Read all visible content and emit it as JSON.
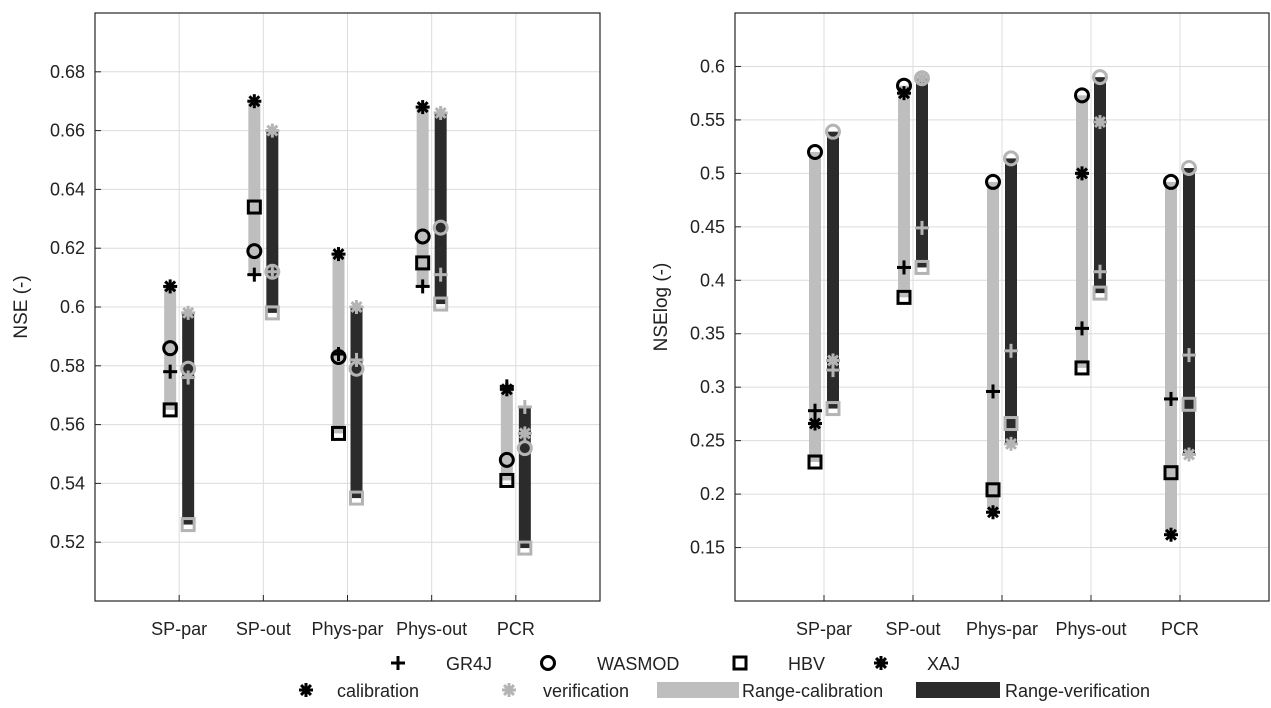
{
  "colors": {
    "range_calibration": "#bebebe",
    "range_verification": "#2b2b2b",
    "calibration_marker": "#000000",
    "verification_marker": "#b4b4b4",
    "grid": "#dcdcdc",
    "axis": "#262626"
  },
  "chart_data": [
    {
      "type": "range-marker",
      "ylabel": "NSE (-)",
      "xlabel": "",
      "categories": [
        "SP-par",
        "SP-out",
        "Phys-par",
        "Phys-out",
        "PCR"
      ],
      "ylim": [
        0.5,
        0.7
      ],
      "yticks": [
        0.52,
        0.54,
        0.56,
        0.58,
        0.6,
        0.62,
        0.64,
        0.66,
        0.68
      ],
      "ytick_labels": [
        "0.52",
        "0.54",
        "0.56",
        "0.58",
        "0.6",
        "0.62",
        "0.64",
        "0.66",
        "0.68"
      ],
      "grid": true,
      "calibration": {
        "GR4J": [
          0.578,
          0.611,
          0.584,
          0.607,
          0.573
        ],
        "WASMOD": [
          0.586,
          0.619,
          0.583,
          0.624,
          0.548
        ],
        "HBV": [
          0.565,
          0.634,
          0.557,
          0.615,
          0.541
        ],
        "XAJ": [
          0.607,
          0.67,
          0.618,
          0.668,
          0.572
        ]
      },
      "verification": {
        "GR4J": [
          0.576,
          0.612,
          0.582,
          0.611,
          0.566
        ],
        "WASMOD": [
          0.579,
          0.612,
          0.579,
          0.627,
          0.552
        ],
        "HBV": [
          0.526,
          0.598,
          0.535,
          0.601,
          0.518
        ],
        "XAJ": [
          0.598,
          0.66,
          0.6,
          0.666,
          0.557
        ]
      }
    },
    {
      "type": "range-marker",
      "ylabel": "NSElog (-)",
      "xlabel": "",
      "categories": [
        "SP-par",
        "SP-out",
        "Phys-par",
        "Phys-out",
        "PCR"
      ],
      "ylim": [
        0.1,
        0.65
      ],
      "yticks": [
        0.15,
        0.2,
        0.25,
        0.3,
        0.35,
        0.4,
        0.45,
        0.5,
        0.55,
        0.6
      ],
      "ytick_labels": [
        "0.15",
        "0.2",
        "0.25",
        "0.3",
        "0.35",
        "0.4",
        "0.45",
        "0.5",
        "0.55",
        "0.6"
      ],
      "grid": true,
      "calibration": {
        "GR4J": [
          0.278,
          0.412,
          0.296,
          0.355,
          0.289
        ],
        "WASMOD": [
          0.52,
          0.582,
          0.492,
          0.573,
          0.492
        ],
        "HBV": [
          0.23,
          0.384,
          0.204,
          0.318,
          0.22
        ],
        "XAJ": [
          0.266,
          0.575,
          0.183,
          0.5,
          0.162
        ]
      },
      "verification": {
        "GR4J": [
          0.316,
          0.449,
          0.334,
          0.408,
          0.33
        ],
        "WASMOD": [
          0.539,
          0.589,
          0.514,
          0.59,
          0.505
        ],
        "HBV": [
          0.28,
          0.412,
          0.266,
          0.388,
          0.284
        ],
        "XAJ": [
          0.325,
          0.589,
          0.247,
          0.548,
          0.237
        ]
      }
    }
  ],
  "legend": {
    "models": [
      {
        "label": "GR4J",
        "icon": "plus-marker-icon"
      },
      {
        "label": "WASMOD",
        "icon": "circle-marker-icon"
      },
      {
        "label": "HBV",
        "icon": "square-marker-icon"
      },
      {
        "label": "XAJ",
        "icon": "asterisk-marker-icon"
      }
    ],
    "kinds": [
      {
        "label": "calibration",
        "icon": "asterisk-marker-icon"
      },
      {
        "label": "verification",
        "icon": "asterisk-marker-icon"
      },
      {
        "label": "Range-calibration",
        "icon": "range-bar-icon"
      },
      {
        "label": "Range-verification",
        "icon": "range-bar-icon"
      }
    ]
  }
}
